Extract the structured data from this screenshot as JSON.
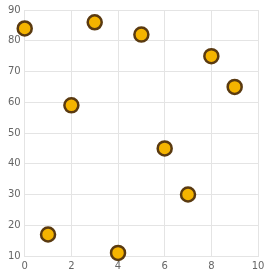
{
  "chart_data": {
    "type": "scatter",
    "x": [
      0,
      1,
      2,
      3,
      4,
      5,
      6,
      7,
      8,
      9
    ],
    "values": [
      84,
      17,
      59,
      86,
      11,
      82,
      45,
      30,
      75,
      65
    ],
    "color": "#f5b400",
    "marker": "circle",
    "xlim": [
      0,
      10
    ],
    "xticks": [
      0,
      2,
      4,
      6,
      8,
      10
    ],
    "ylim": [
      10,
      90
    ],
    "yticks": [
      10,
      20,
      30,
      40,
      50,
      60,
      70,
      80,
      90
    ],
    "grid": true
  }
}
